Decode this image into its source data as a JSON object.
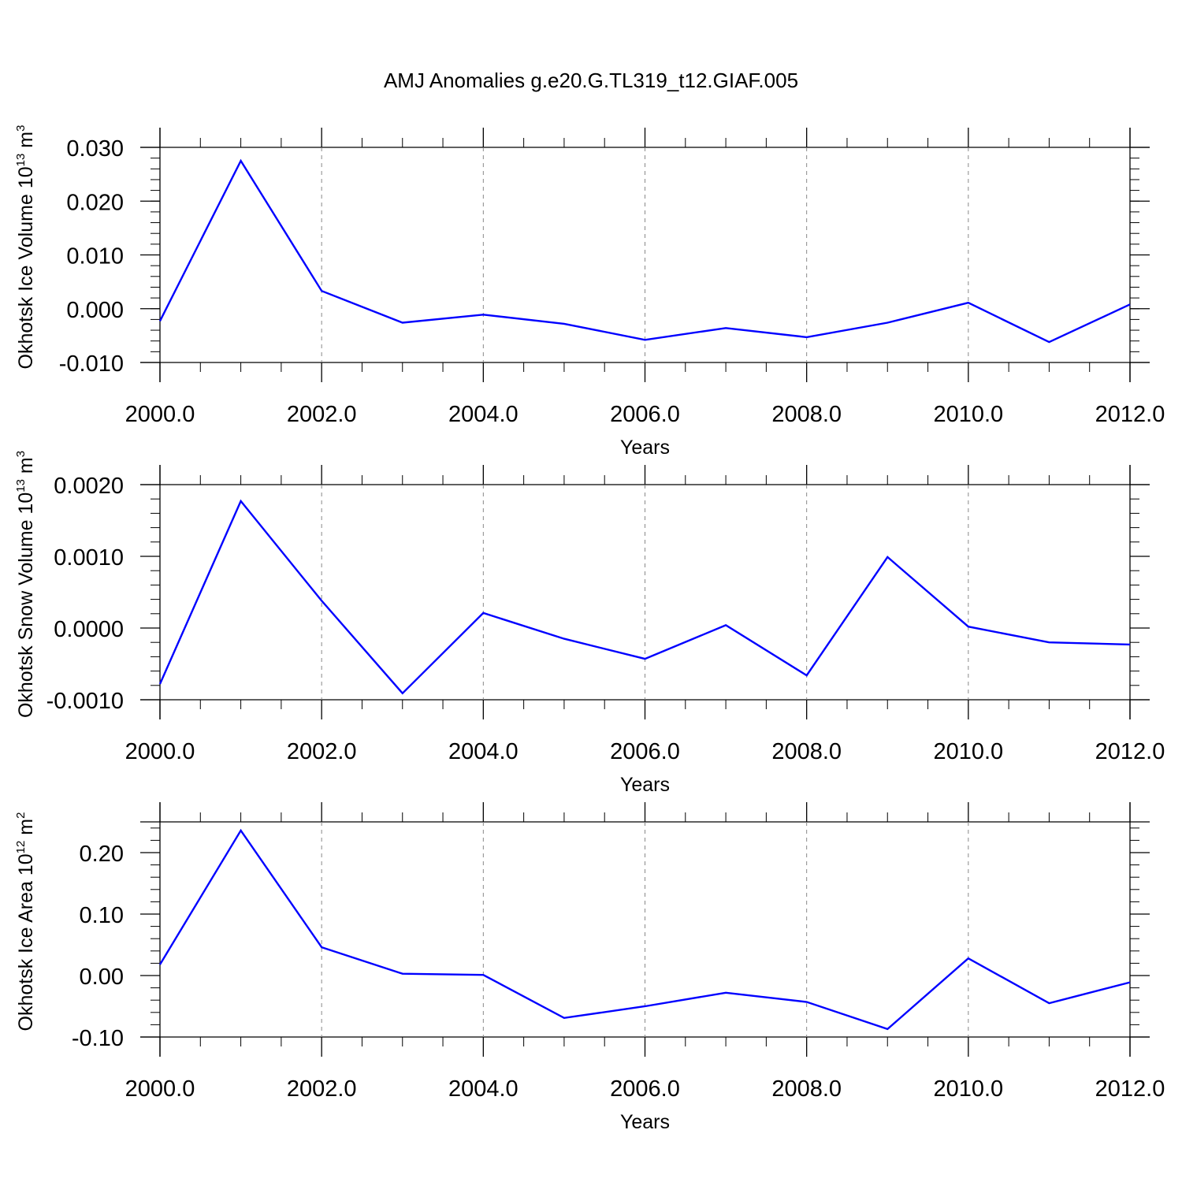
{
  "title": "AMJ Anomalies g.e20.G.TL319_t12.GIAF.005",
  "colors": {
    "line": "#0000ff",
    "axis": "#000000",
    "grid": "#888888"
  },
  "chart_data": [
    {
      "type": "line",
      "xlabel": "Years",
      "ylabel": {
        "main": "Okhotsk Ice Volume 10",
        "exp": "13",
        "unit": " m",
        "unit_exp": "3"
      },
      "xlim": [
        2000,
        2012
      ],
      "ylim": [
        -0.01,
        0.03
      ],
      "xticks": [
        2000,
        2002,
        2004,
        2006,
        2008,
        2010,
        2012
      ],
      "xtick_labels": [
        "2000.0",
        "2002.0",
        "2004.0",
        "2006.0",
        "2008.0",
        "2010.0",
        "2012.0"
      ],
      "yticks": [
        -0.01,
        0.0,
        0.01,
        0.02,
        0.03
      ],
      "ytick_labels": [
        "-0.010",
        "0.000",
        "0.010",
        "0.020",
        "0.030"
      ],
      "grid": "vertical dashed at labeled years",
      "series": [
        {
          "x": [
            2000,
            2001,
            2002,
            2003,
            2004,
            2005,
            2006,
            2007,
            2008,
            2009,
            2010,
            2011,
            2012
          ],
          "values": [
            -0.0023,
            0.0275,
            0.0033,
            -0.0026,
            -0.0011,
            -0.0028,
            -0.0058,
            -0.0036,
            -0.0053,
            -0.0026,
            0.0011,
            -0.0062,
            0.0008
          ]
        }
      ]
    },
    {
      "type": "line",
      "xlabel": "Years",
      "ylabel": {
        "main": "Okhotsk Snow Volume 10",
        "exp": "13",
        "unit": " m",
        "unit_exp": "3"
      },
      "xlim": [
        2000,
        2012
      ],
      "ylim": [
        -0.001,
        0.002
      ],
      "xticks": [
        2000,
        2002,
        2004,
        2006,
        2008,
        2010,
        2012
      ],
      "xtick_labels": [
        "2000.0",
        "2002.0",
        "2004.0",
        "2006.0",
        "2008.0",
        "2010.0",
        "2012.0"
      ],
      "yticks": [
        -0.001,
        0.0,
        0.001,
        0.002
      ],
      "ytick_labels": [
        "-0.0010",
        "0.0000",
        "0.0010",
        "0.0020"
      ],
      "grid": "vertical dashed at labeled years",
      "series": [
        {
          "x": [
            2000,
            2001,
            2002,
            2003,
            2004,
            2005,
            2006,
            2007,
            2008,
            2009,
            2010,
            2011,
            2012
          ],
          "values": [
            -0.00078,
            0.00177,
            0.00038,
            -0.00091,
            0.00021,
            -0.00015,
            -0.00043,
            4e-05,
            -0.00066,
            0.00099,
            2e-05,
            -0.0002,
            -0.00023
          ]
        }
      ]
    },
    {
      "type": "line",
      "xlabel": "Years",
      "ylabel": {
        "main": "Okhotsk Ice Area 10",
        "exp": "12",
        "unit": " m",
        "unit_exp": "2"
      },
      "xlim": [
        2000,
        2012
      ],
      "ylim": [
        -0.1,
        0.25
      ],
      "xticks": [
        2000,
        2002,
        2004,
        2006,
        2008,
        2010,
        2012
      ],
      "xtick_labels": [
        "2000.0",
        "2002.0",
        "2004.0",
        "2006.0",
        "2008.0",
        "2010.0",
        "2012.0"
      ],
      "yticks": [
        -0.1,
        0.0,
        0.1,
        0.2
      ],
      "ytick_labels": [
        "-0.10",
        "0.00",
        "0.10",
        "0.20"
      ],
      "grid": "vertical dashed at labeled years",
      "series": [
        {
          "x": [
            2000,
            2001,
            2002,
            2003,
            2004,
            2005,
            2006,
            2007,
            2008,
            2009,
            2010,
            2011,
            2012
          ],
          "values": [
            0.018,
            0.236,
            0.046,
            0.003,
            0.001,
            -0.069,
            -0.05,
            -0.028,
            -0.043,
            -0.087,
            0.028,
            -0.045,
            -0.011
          ]
        }
      ]
    }
  ]
}
